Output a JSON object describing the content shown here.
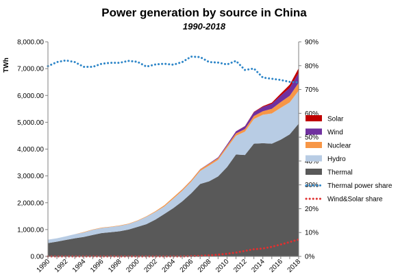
{
  "chart_data": {
    "type": "area",
    "title": "Power generation by source in China",
    "subtitle": "1990-2018",
    "ylabel": "TWh",
    "ylim": [
      0,
      8000
    ],
    "y2lim": [
      0,
      90
    ],
    "yticks": [
      "0.00",
      "1,000.00",
      "2,000.00",
      "3,000.00",
      "4,000.00",
      "5,000.00",
      "6,000.00",
      "7,000.00",
      "8,000.00"
    ],
    "y2ticks": [
      "0%",
      "10%",
      "20%",
      "30%",
      "40%",
      "50%",
      "60%",
      "70%",
      "80%",
      "90%"
    ],
    "xticks": [
      "1990",
      "1992",
      "1994",
      "1996",
      "1998",
      "2000",
      "2002",
      "2004",
      "2006",
      "2008",
      "2010",
      "2012",
      "2014",
      "2016",
      "2018"
    ],
    "x": [
      1990,
      1991,
      1992,
      1993,
      1994,
      1995,
      1996,
      1997,
      1998,
      1999,
      2000,
      2001,
      2002,
      2003,
      2004,
      2005,
      2006,
      2007,
      2008,
      2009,
      2010,
      2011,
      2012,
      2013,
      2014,
      2015,
      2016,
      2017,
      2018
    ],
    "series": [
      {
        "name": "Thermal",
        "color": "#595959",
        "values": [
          495,
          550,
          615,
          675,
          725,
          800,
          870,
          900,
          935,
          1000,
          1100,
          1200,
          1370,
          1580,
          1800,
          2050,
          2350,
          2700,
          2800,
          2980,
          3330,
          3800,
          3780,
          4200,
          4220,
          4200,
          4350,
          4550,
          4950
        ]
      },
      {
        "name": "Hydro",
        "color": "#b8cce4",
        "values": [
          127,
          125,
          131,
          151,
          167,
          191,
          188,
          196,
          204,
          205,
          222,
          277,
          288,
          283,
          353,
          397,
          435,
          485,
          585,
          616,
          722,
          699,
          872,
          920,
          1060,
          1130,
          1190,
          1190,
          1230
        ]
      },
      {
        "name": "Nuclear",
        "color": "#f79646",
        "values": [
          0,
          0,
          0,
          2,
          14,
          13,
          14,
          14,
          14,
          15,
          17,
          17,
          25,
          43,
          50,
          53,
          55,
          62,
          68,
          70,
          74,
          87,
          97,
          112,
          133,
          171,
          213,
          248,
          294
        ]
      },
      {
        "name": "Wind",
        "color": "#7030a0",
        "values": [
          0,
          0,
          0,
          0,
          0,
          0,
          0,
          0,
          0,
          0,
          1,
          1,
          1,
          1,
          1,
          2,
          4,
          6,
          15,
          28,
          45,
          74,
          103,
          142,
          159,
          186,
          241,
          295,
          366
        ]
      },
      {
        "name": "Solar",
        "color": "#c00000",
        "values": [
          0,
          0,
          0,
          0,
          0,
          0,
          0,
          0,
          0,
          0,
          0,
          0,
          0,
          0,
          0,
          0,
          0,
          0,
          0,
          0,
          1,
          3,
          6,
          15,
          29,
          45,
          75,
          118,
          177
        ]
      }
    ],
    "lines": [
      {
        "name": "Thermal power share",
        "color": "#2e86c8",
        "style": "dotted",
        "axis": "right",
        "values": [
          79.8,
          81.5,
          82.2,
          81.5,
          79.5,
          79.5,
          80.8,
          81.2,
          81.2,
          82.0,
          81.6,
          79.6,
          80.5,
          80.8,
          80.4,
          81.5,
          83.8,
          83.6,
          81.5,
          81.3,
          80.5,
          82.0,
          78.2,
          78.8,
          75.0,
          74.5,
          74.0,
          73.2,
          73.0
        ]
      },
      {
        "name": "Wind&Solar share",
        "color": "#e03030",
        "style": "dotted",
        "axis": "right",
        "values": [
          0,
          0,
          0,
          0,
          0,
          0,
          0,
          0,
          0,
          0,
          0,
          0,
          0,
          0,
          0,
          0,
          0.1,
          0.2,
          0.4,
          0.7,
          1.1,
          1.6,
          2.3,
          3.0,
          3.3,
          4.0,
          5.0,
          6.0,
          7.1
        ]
      }
    ],
    "legend": {
      "position": "right",
      "items": [
        {
          "label": "Solar",
          "kind": "area",
          "color": "#c00000"
        },
        {
          "label": "Wind",
          "kind": "area",
          "color": "#7030a0"
        },
        {
          "label": "Nuclear",
          "kind": "area",
          "color": "#f79646"
        },
        {
          "label": "Hydro",
          "kind": "area",
          "color": "#b8cce4"
        },
        {
          "label": "Thermal",
          "kind": "area",
          "color": "#595959"
        },
        {
          "label": "Thermal power share",
          "kind": "dotted",
          "color": "#2e86c8"
        },
        {
          "label": "Wind&Solar share",
          "kind": "dotted",
          "color": "#e03030"
        }
      ]
    },
    "grid": false
  }
}
